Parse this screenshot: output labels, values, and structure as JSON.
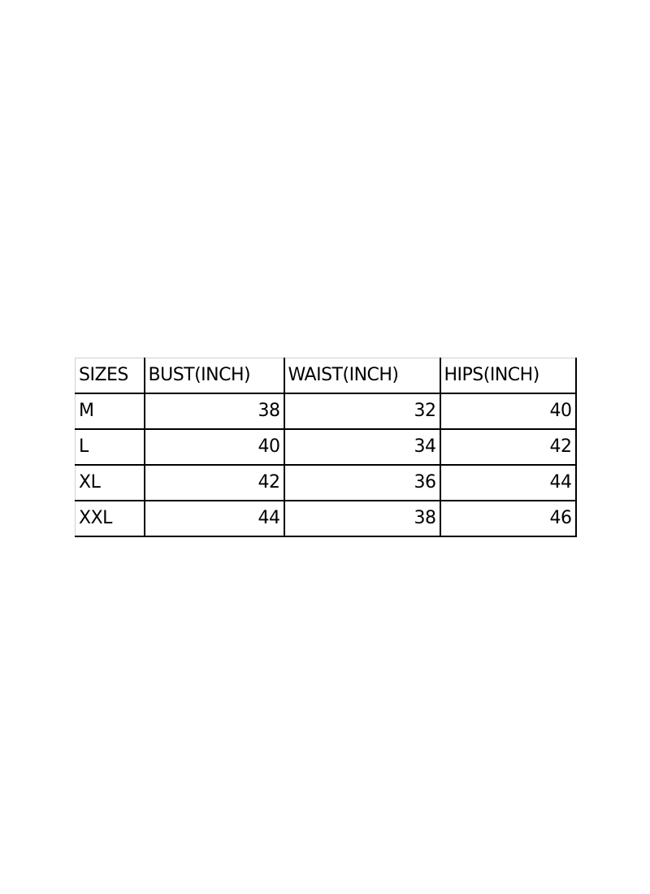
{
  "size_chart": {
    "headers": [
      "SIZES",
      "BUST(INCH)",
      "WAIST(INCH)",
      "HIPS(INCH)"
    ],
    "rows": [
      [
        "M",
        "38",
        "32",
        "40"
      ],
      [
        "L",
        "40",
        "34",
        "42"
      ],
      [
        "XL",
        "42",
        "36",
        "44"
      ],
      [
        "XXL",
        "44",
        "38",
        "46"
      ]
    ]
  }
}
